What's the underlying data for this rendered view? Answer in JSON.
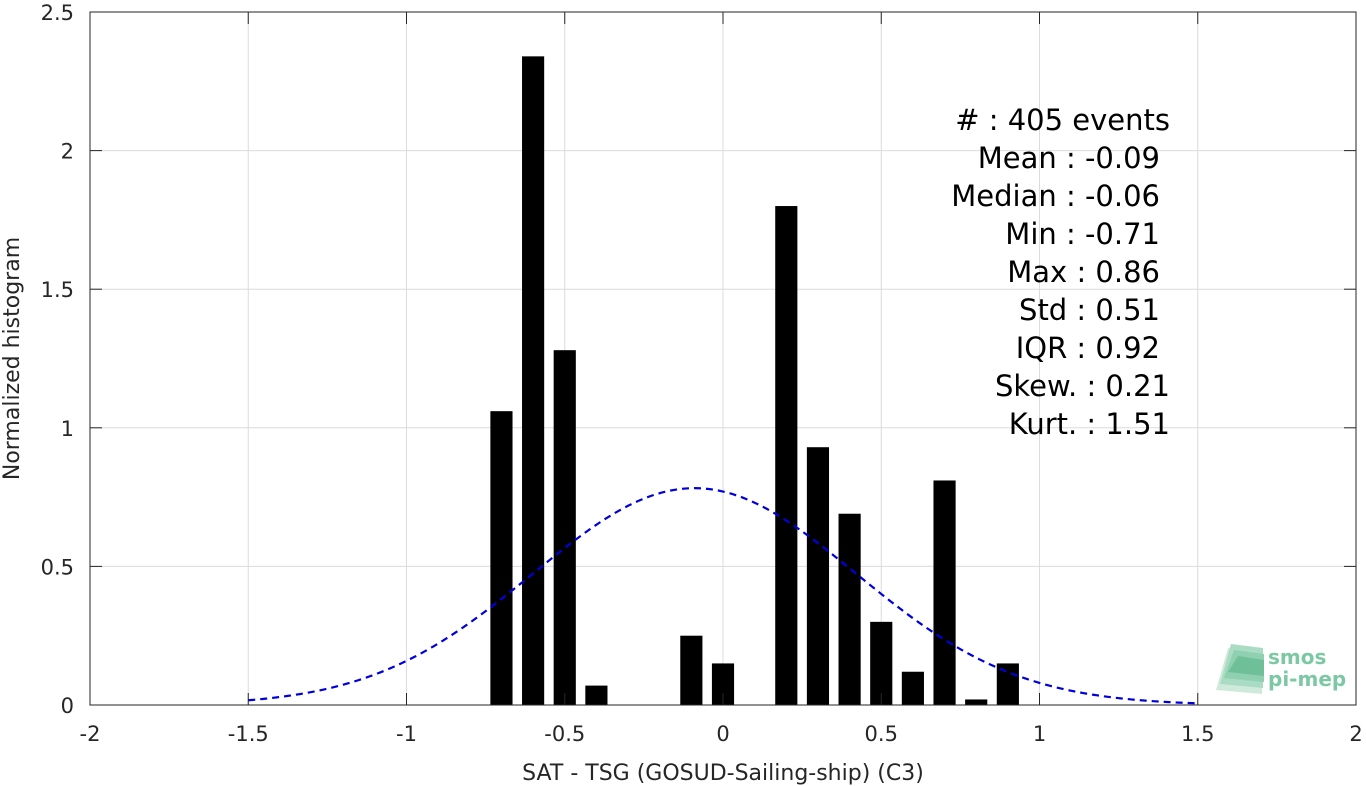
{
  "chart_data": {
    "type": "bar",
    "xlabel": "SAT - TSG (GOSUD-Sailing-ship) (C3)",
    "ylabel": "Normalized histogram",
    "xlim": [
      -2,
      2
    ],
    "ylim": [
      0,
      2.5
    ],
    "xticks": [
      -2,
      -1.5,
      -1,
      -0.5,
      0,
      0.5,
      1,
      1.5,
      2
    ],
    "xtick_labels": [
      "-2",
      "-1.5",
      "-1",
      "-0.5",
      "0",
      "0.5",
      "1",
      "1.5",
      "2"
    ],
    "yticks": [
      0,
      0.5,
      1,
      1.5,
      2,
      2.5
    ],
    "ytick_labels": [
      "0",
      "0.5",
      "1",
      "1.5",
      "2",
      "2.5"
    ],
    "grid": true,
    "bar_color": "#000000",
    "bin_width": 0.1,
    "bars": [
      {
        "x": -0.7,
        "value": 1.06
      },
      {
        "x": -0.6,
        "value": 2.34
      },
      {
        "x": -0.5,
        "value": 1.28
      },
      {
        "x": -0.4,
        "value": 0.07
      },
      {
        "x": -0.1,
        "value": 0.25
      },
      {
        "x": 0.0,
        "value": 0.15
      },
      {
        "x": 0.2,
        "value": 1.8
      },
      {
        "x": 0.3,
        "value": 0.93
      },
      {
        "x": 0.4,
        "value": 0.69
      },
      {
        "x": 0.5,
        "value": 0.3
      },
      {
        "x": 0.6,
        "value": 0.12
      },
      {
        "x": 0.7,
        "value": 0.81
      },
      {
        "x": 0.8,
        "value": 0.02
      },
      {
        "x": 0.9,
        "value": 0.15
      }
    ],
    "fit_curve": {
      "style": "dashed",
      "color": "#0000dd",
      "mean": -0.09,
      "std": 0.51,
      "x_range": [
        -1.5,
        1.5
      ]
    },
    "annotations": [
      {
        "text": "#  : 405 events"
      },
      {
        "text": "Mean : -0.09"
      },
      {
        "text": "Median : -0.06"
      },
      {
        "text": "Min : -0.71"
      },
      {
        "text": "Max : 0.86"
      },
      {
        "text": "Std : 0.51"
      },
      {
        "text": "IQR : 0.92"
      },
      {
        "text": "Skew. : 0.21"
      },
      {
        "text": "Kurt. : 1.51"
      }
    ]
  },
  "logo": {
    "line1": "smos",
    "line2": "pi-mep",
    "color": "#7cc8a4"
  }
}
